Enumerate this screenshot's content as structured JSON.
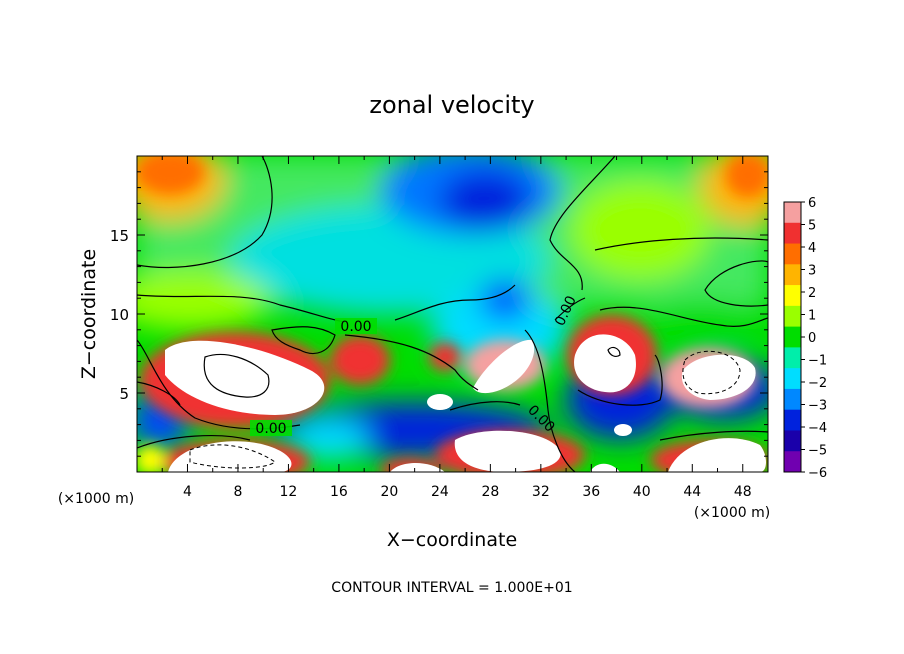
{
  "chart_data": {
    "type": "heatmap",
    "title": "zonal velocity",
    "xlabel": "X−coordinate",
    "ylabel": "Z−coordinate",
    "xlim": [
      0,
      50
    ],
    "ylim": [
      0,
      20
    ],
    "x_ticks": [
      4,
      8,
      12,
      16,
      20,
      24,
      28,
      32,
      36,
      40,
      44,
      48
    ],
    "y_ticks": [
      5,
      10,
      15
    ],
    "x_unit_label": "(×1000 m)",
    "colorbar_ticks": [
      "6",
      "5",
      "4",
      "3",
      "2",
      "1",
      "0",
      "−1",
      "−2",
      "−3",
      "−4",
      "−5",
      "−6"
    ],
    "colorbar_colors": [
      "#f5a0a0",
      "#f03030",
      "#ff6e00",
      "#ffb400",
      "#ffff00",
      "#9aff00",
      "#00dd00",
      "#00eeaa",
      "#00ddff",
      "#0088ff",
      "#0022dd",
      "#1a00aa",
      "#7000b0"
    ],
    "contour_label": "0.00",
    "footer": "CONTOUR INTERVAL = 1.000E+01"
  }
}
